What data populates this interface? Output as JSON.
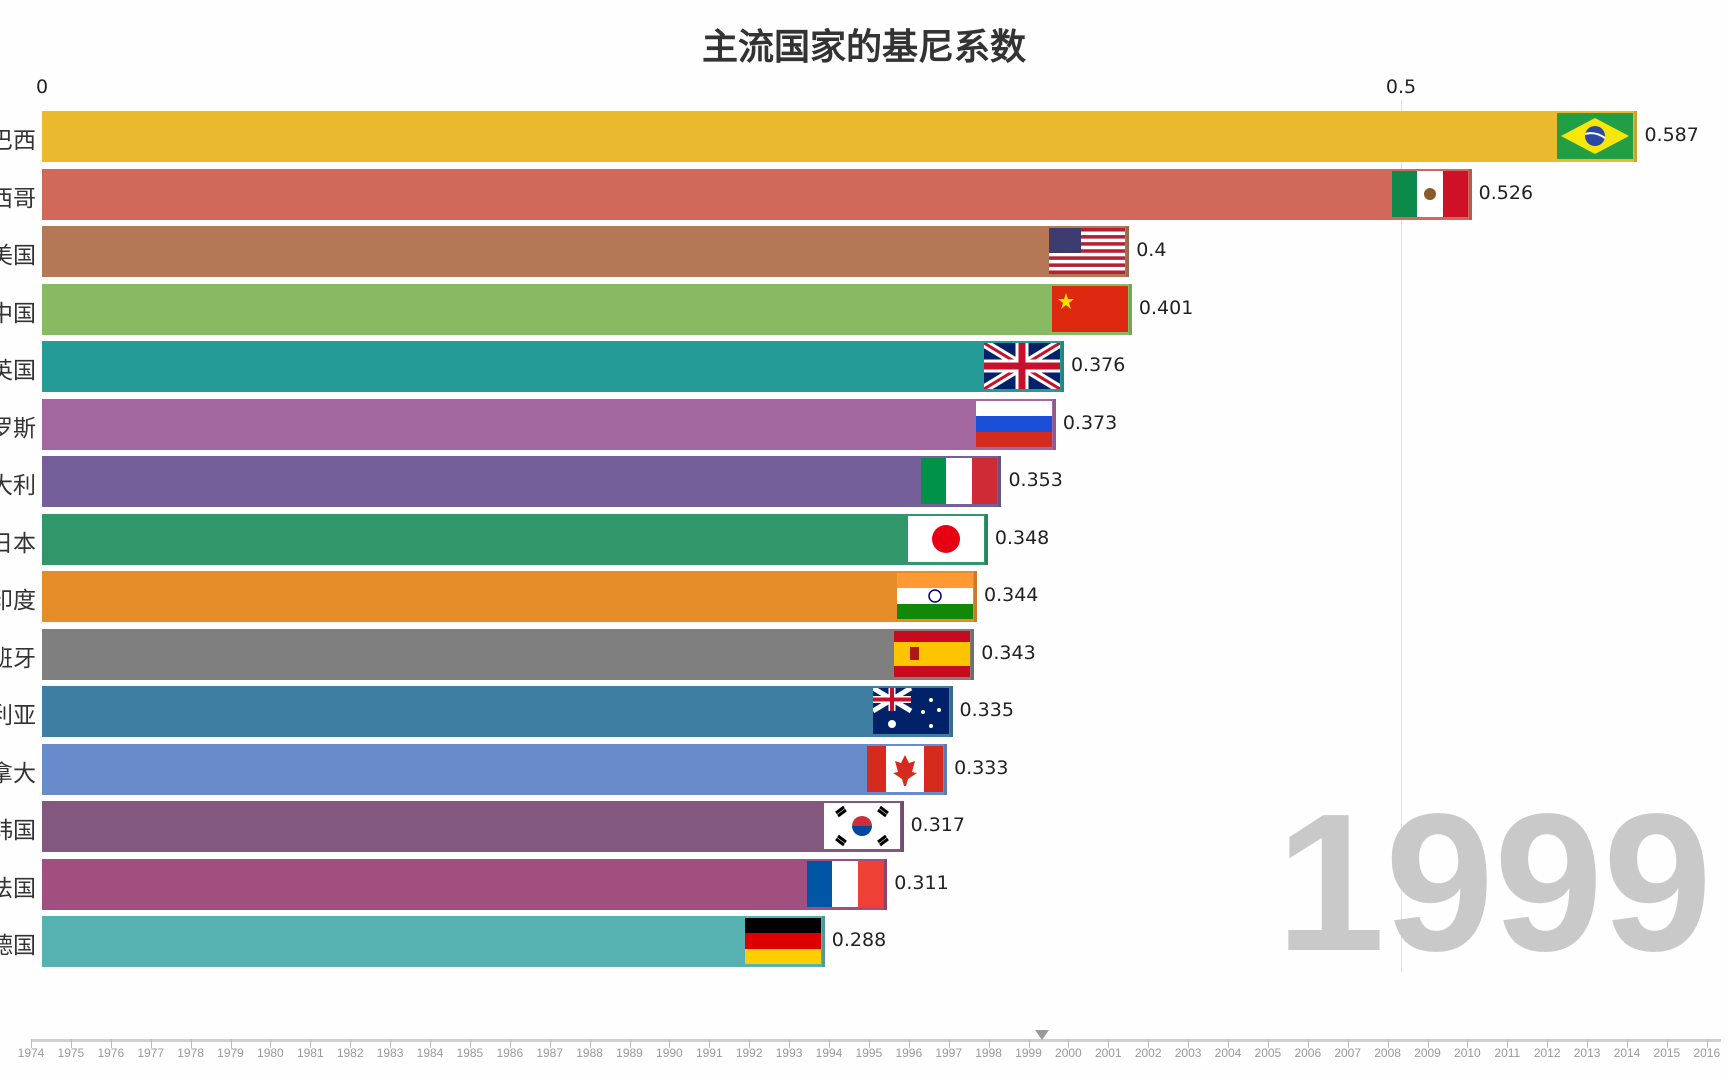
{
  "chart_data": {
    "type": "bar",
    "orientation": "horizontal",
    "title": "主流国家的基尼系数",
    "xlim": [
      0,
      0.6
    ],
    "x_ticks": [
      "0",
      "0.5"
    ],
    "grid": "vertical line at 0.5",
    "current_year": "1999",
    "categories": [
      "巴西",
      "墨西哥",
      "美国",
      "中国",
      "英国",
      "俄罗斯",
      "意大利",
      "日本",
      "印度",
      "西班牙",
      "澳大利亚",
      "加拿大",
      "韩国",
      "法国",
      "德国"
    ],
    "values": [
      0.587,
      0.526,
      0.4,
      0.401,
      0.376,
      0.373,
      0.353,
      0.348,
      0.344,
      0.343,
      0.335,
      0.333,
      0.317,
      0.311,
      0.288
    ],
    "value_labels": [
      "0.587",
      "0.526",
      "0.4",
      "0.401",
      "0.376",
      "0.373",
      "0.353",
      "0.348",
      "0.344",
      "0.343",
      "0.335",
      "0.333",
      "0.317",
      "0.311",
      "0.288"
    ],
    "colors": [
      "#ebb92e",
      "#d0695a",
      "#b47856",
      "#87ba62",
      "#259b95",
      "#a468a0",
      "#745f9b",
      "#31976a",
      "#e68d2a",
      "#7f7f7f",
      "#3e7ea2",
      "#688bcc",
      "#83587f",
      "#a04f7e",
      "#55b2b0"
    ],
    "flags": [
      "brazil-flag",
      "mexico-flag",
      "usa-flag",
      "china-flag",
      "uk-flag",
      "russia-flag",
      "italy-flag",
      "japan-flag",
      "india-flag",
      "spain-flag",
      "australia-flag",
      "canada-flag",
      "korea-flag",
      "france-flag",
      "germany-flag"
    ]
  },
  "timeline": {
    "years": [
      "1974",
      "1975",
      "1976",
      "1977",
      "1978",
      "1979",
      "1980",
      "1981",
      "1982",
      "1983",
      "1984",
      "1985",
      "1986",
      "1987",
      "1988",
      "1989",
      "1990",
      "1991",
      "1992",
      "1993",
      "1994",
      "1995",
      "1996",
      "1997",
      "1998",
      "1999",
      "2000",
      "2001",
      "2002",
      "2003",
      "2004",
      "2005",
      "2006",
      "2007",
      "2008",
      "2009",
      "2010",
      "2011",
      "2012",
      "2013",
      "2014",
      "2015",
      "2016"
    ],
    "current": "1999"
  }
}
